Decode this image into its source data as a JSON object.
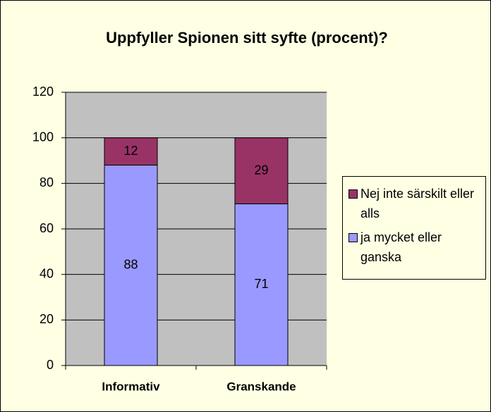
{
  "chart_data": {
    "type": "stacked-bar",
    "title": "Uppfyller Spionen sitt syfte (procent)?",
    "categories": [
      "Informativ",
      "Granskande"
    ],
    "series": [
      {
        "name": "ja mycket eller ganska",
        "color": "#9999FF",
        "values": [
          88,
          71
        ]
      },
      {
        "name": "Nej inte särskilt eller alls",
        "color": "#993366",
        "values": [
          12,
          29
        ]
      }
    ],
    "ylim": [
      0,
      120
    ],
    "yticks": [
      0,
      20,
      40,
      60,
      80,
      100,
      120
    ],
    "grid": true,
    "legend": "right"
  }
}
